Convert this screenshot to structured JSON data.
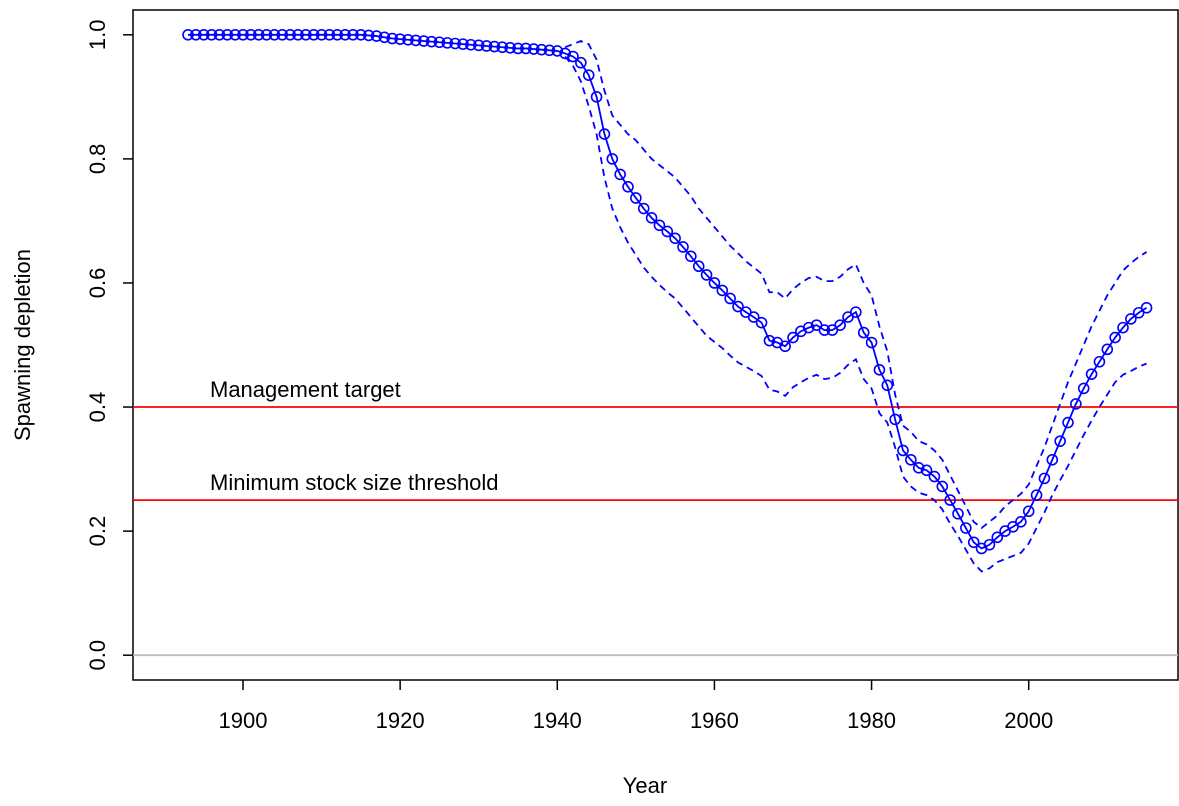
{
  "chart_data": {
    "type": "line",
    "xlabel": "Year",
    "ylabel": "Spawning depletion",
    "xlim": [
      1886,
      2019
    ],
    "ylim": [
      -0.04,
      1.04
    ],
    "xticks": [
      1900,
      1920,
      1940,
      1960,
      1980,
      2000
    ],
    "yticks": [
      {
        "value": 0,
        "label": "0.0"
      },
      0.2,
      0.4,
      0.6,
      0.8,
      {
        "value": 1,
        "label": "1.0"
      }
    ],
    "x": [
      1893,
      1894,
      1895,
      1896,
      1897,
      1898,
      1899,
      1900,
      1901,
      1902,
      1903,
      1904,
      1905,
      1906,
      1907,
      1908,
      1909,
      1910,
      1911,
      1912,
      1913,
      1914,
      1915,
      1916,
      1917,
      1918,
      1919,
      1920,
      1921,
      1922,
      1923,
      1924,
      1925,
      1926,
      1927,
      1928,
      1929,
      1930,
      1931,
      1932,
      1933,
      1934,
      1935,
      1936,
      1937,
      1938,
      1939,
      1940,
      1941,
      1942,
      1943,
      1944,
      1945,
      1946,
      1947,
      1948,
      1949,
      1950,
      1951,
      1952,
      1953,
      1954,
      1955,
      1956,
      1957,
      1958,
      1959,
      1960,
      1961,
      1962,
      1963,
      1964,
      1965,
      1966,
      1967,
      1968,
      1969,
      1970,
      1971,
      1972,
      1973,
      1974,
      1975,
      1976,
      1977,
      1978,
      1979,
      1980,
      1981,
      1982,
      1983,
      1984,
      1985,
      1986,
      1987,
      1988,
      1989,
      1990,
      1991,
      1992,
      1993,
      1994,
      1995,
      1996,
      1997,
      1998,
      1999,
      2000,
      2001,
      2002,
      2003,
      2004,
      2005,
      2006,
      2007,
      2008,
      2009,
      2010,
      2011,
      2012,
      2013,
      2014,
      2015
    ],
    "series": [
      {
        "color": "#0000ff",
        "marker": "circle",
        "dashed": false,
        "values": [
          1,
          1,
          1,
          1,
          1,
          1,
          1,
          1,
          1,
          1,
          1,
          1,
          1,
          1,
          1,
          1,
          1,
          1,
          1,
          1,
          1,
          1,
          1,
          0.999,
          0.998,
          0.996,
          0.994,
          0.993,
          0.992,
          0.991,
          0.99,
          0.989,
          0.988,
          0.987,
          0.986,
          0.985,
          0.984,
          0.983,
          0.982,
          0.981,
          0.98,
          0.979,
          0.978,
          0.978,
          0.977,
          0.976,
          0.975,
          0.974,
          0.97,
          0.965,
          0.955,
          0.935,
          0.9,
          0.84,
          0.8,
          0.775,
          0.755,
          0.737,
          0.72,
          0.705,
          0.693,
          0.683,
          0.672,
          0.658,
          0.643,
          0.627,
          0.613,
          0.6,
          0.588,
          0.575,
          0.562,
          0.553,
          0.545,
          0.536,
          0.507,
          0.504,
          0.498,
          0.512,
          0.522,
          0.528,
          0.532,
          0.524,
          0.524,
          0.532,
          0.545,
          0.553,
          0.52,
          0.504,
          0.46,
          0.435,
          0.38,
          0.33,
          0.315,
          0.302,
          0.298,
          0.288,
          0.272,
          0.25,
          0.228,
          0.205,
          0.182,
          0.172,
          0.178,
          0.19,
          0.2,
          0.207,
          0.215,
          0.232,
          0.258,
          0.285,
          0.315,
          0.345,
          0.375,
          0.405,
          0.43,
          0.453,
          0.473,
          0.493,
          0.512,
          0.528,
          0.542,
          0.552,
          0.56
        ]
      },
      {
        "color": "#0000ff",
        "marker": "none",
        "dashed": true,
        "values": [
          null,
          null,
          null,
          null,
          null,
          null,
          null,
          null,
          null,
          null,
          null,
          null,
          null,
          null,
          null,
          null,
          null,
          null,
          null,
          null,
          null,
          null,
          null,
          null,
          null,
          null,
          null,
          null,
          null,
          null,
          null,
          null,
          null,
          null,
          null,
          null,
          null,
          null,
          null,
          null,
          null,
          null,
          null,
          null,
          null,
          null,
          null,
          null,
          0.98,
          0.985,
          0.99,
          0.985,
          0.96,
          0.91,
          0.87,
          0.855,
          0.84,
          0.83,
          0.815,
          0.8,
          0.79,
          0.78,
          0.77,
          0.755,
          0.74,
          0.72,
          0.705,
          0.69,
          0.675,
          0.66,
          0.648,
          0.635,
          0.625,
          0.615,
          0.585,
          0.585,
          0.575,
          0.59,
          0.6,
          0.608,
          0.61,
          0.603,
          0.603,
          0.61,
          0.622,
          0.63,
          0.6,
          0.58,
          0.53,
          0.49,
          0.42,
          0.37,
          0.36,
          0.345,
          0.34,
          0.33,
          0.315,
          0.29,
          0.265,
          0.24,
          0.215,
          0.205,
          0.215,
          0.225,
          0.24,
          0.25,
          0.26,
          0.275,
          0.305,
          0.335,
          0.37,
          0.405,
          0.44,
          0.47,
          0.5,
          0.53,
          0.555,
          0.58,
          0.6,
          0.62,
          0.632,
          0.642,
          0.65
        ]
      },
      {
        "color": "#0000ff",
        "marker": "none",
        "dashed": true,
        "values": [
          null,
          null,
          null,
          null,
          null,
          null,
          null,
          null,
          null,
          null,
          null,
          null,
          null,
          null,
          null,
          null,
          null,
          null,
          null,
          null,
          null,
          null,
          null,
          null,
          null,
          null,
          null,
          null,
          null,
          null,
          null,
          null,
          null,
          null,
          null,
          null,
          null,
          null,
          null,
          null,
          null,
          null,
          null,
          null,
          null,
          null,
          null,
          null,
          0.965,
          0.95,
          0.925,
          0.885,
          0.84,
          0.77,
          0.72,
          0.69,
          0.665,
          0.645,
          0.625,
          0.61,
          0.597,
          0.585,
          0.575,
          0.56,
          0.545,
          0.53,
          0.515,
          0.505,
          0.495,
          0.483,
          0.472,
          0.465,
          0.458,
          0.45,
          0.428,
          0.425,
          0.418,
          0.432,
          0.44,
          0.447,
          0.452,
          0.445,
          0.447,
          0.455,
          0.468,
          0.477,
          0.445,
          0.43,
          0.39,
          0.375,
          0.335,
          0.288,
          0.272,
          0.262,
          0.258,
          0.25,
          0.235,
          0.212,
          0.192,
          0.17,
          0.148,
          0.135,
          0.14,
          0.15,
          0.155,
          0.16,
          0.165,
          0.18,
          0.205,
          0.23,
          0.258,
          0.282,
          0.305,
          0.33,
          0.355,
          0.378,
          0.4,
          0.42,
          0.44,
          0.452,
          0.458,
          0.465,
          0.47
        ]
      }
    ],
    "hlines": [
      {
        "value": 0,
        "color": "#bebebe"
      },
      {
        "value": 0.4,
        "color": "#ff0000",
        "label": "Management target"
      },
      {
        "value": 0.25,
        "color": "#ff0000",
        "label": "Minimum stock size threshold"
      }
    ]
  }
}
